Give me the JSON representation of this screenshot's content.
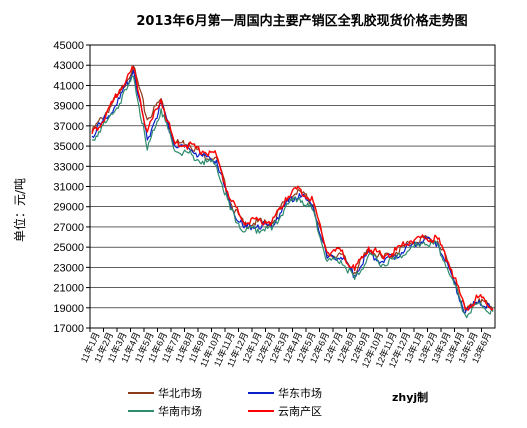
{
  "chart_data": {
    "type": "line",
    "title": "2013年6月第一周国内主要产销区全乳胶现货价格走势图",
    "ylabel": "单位：元/吨",
    "xlabel": "",
    "ylim": [
      17000,
      45000
    ],
    "yticks": [
      17000,
      19000,
      21000,
      23000,
      25000,
      27000,
      29000,
      31000,
      33000,
      35000,
      37000,
      39000,
      41000,
      43000,
      45000
    ],
    "x_tick_labels": [
      "11年1月",
      "11年2月",
      "11年3月",
      "11年4月",
      "11年5月",
      "11年6月",
      "11年7月",
      "11年8月",
      "11年9月",
      "11年10月",
      "11年11月",
      "11年12月",
      "12年1月",
      "12年2月",
      "12年3月",
      "12年4月",
      "12年5月",
      "12年6月",
      "12年7月",
      "12年8月",
      "12年9月",
      "12年10月",
      "12年11月",
      "12年12月",
      "13年1月",
      "13年2月",
      "13年3月",
      "13年4月",
      "13年5月",
      "13年6月"
    ],
    "grid": "horizontal",
    "legend_position": "bottom",
    "colors": {
      "series1": "#8B3A1A",
      "series2": "#0A1FC8",
      "series3": "#2E8B6E",
      "series4": "#FF0000"
    },
    "series": [
      {
        "name": "华北市场",
        "color": "#8B3A1A",
        "values": [
          36400,
          38300,
          40200,
          42900,
          37600,
          39700,
          35300,
          35300,
          34100,
          33900,
          29400,
          27200,
          27500,
          27300,
          29600,
          30600,
          29200,
          24200,
          24300,
          22500,
          24800,
          23900,
          24500,
          25400,
          25900,
          25600,
          22600,
          18700,
          19900,
          18800
        ]
      },
      {
        "name": "华东市场",
        "color": "#0A1FC8",
        "values": [
          36000,
          37800,
          39700,
          42500,
          35600,
          39200,
          35000,
          34800,
          34000,
          33600,
          29100,
          26900,
          27200,
          27000,
          29300,
          30300,
          28900,
          23900,
          24000,
          22200,
          24500,
          23600,
          24200,
          25100,
          25700,
          25400,
          22300,
          18500,
          19700,
          18700
        ]
      },
      {
        "name": "华南市场",
        "color": "#2E8B6E",
        "values": [
          35600,
          37300,
          39200,
          41900,
          34600,
          38700,
          34500,
          34300,
          33500,
          33100,
          28700,
          26500,
          26800,
          26700,
          29000,
          29900,
          28600,
          23600,
          23700,
          21800,
          24200,
          23300,
          23900,
          24800,
          25500,
          25200,
          22000,
          18300,
          19500,
          18600
        ]
      },
      {
        "name": "云南产区",
        "color": "#FF0000",
        "values": [
          36200,
          38000,
          40600,
          42700,
          36400,
          39600,
          35200,
          35100,
          34500,
          34100,
          29700,
          27400,
          27700,
          27500,
          29900,
          30800,
          29500,
          24500,
          24600,
          22700,
          25000,
          24100,
          24700,
          25600,
          26000,
          25800,
          22800,
          18900,
          20100,
          18900
        ]
      }
    ],
    "note": "zhyj制"
  }
}
